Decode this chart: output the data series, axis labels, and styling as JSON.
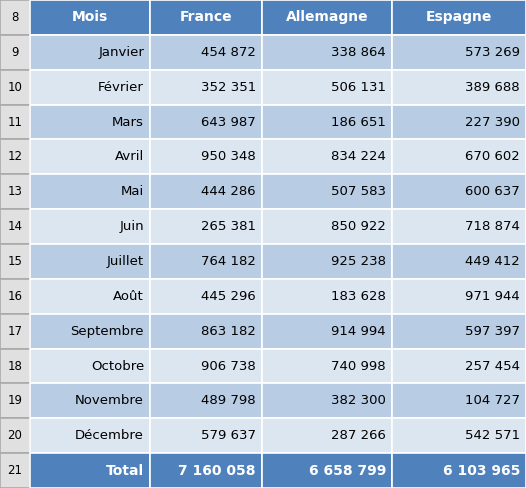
{
  "row_numbers": [
    8,
    9,
    10,
    11,
    12,
    13,
    14,
    15,
    16,
    17,
    18,
    19,
    20,
    21
  ],
  "headers": [
    "Mois",
    "France",
    "Allemagne",
    "Espagne"
  ],
  "months": [
    "Janvier",
    "Février",
    "Mars",
    "Avril",
    "Mai",
    "Juin",
    "Juillet",
    "Août",
    "Septembre",
    "Octobre",
    "Novembre",
    "Décembre"
  ],
  "france": [
    454872,
    352351,
    643987,
    950348,
    444286,
    265381,
    764182,
    445296,
    863182,
    906738,
    489798,
    579637
  ],
  "allemagne": [
    338864,
    506131,
    186651,
    834224,
    507583,
    850922,
    925238,
    183628,
    914994,
    740998,
    382300,
    287266
  ],
  "espagne": [
    573269,
    389688,
    227390,
    670602,
    600637,
    718874,
    449412,
    971944,
    597397,
    257454,
    104727,
    542571
  ],
  "total_france": 7160058,
  "total_allemagne": 6658799,
  "total_espagne": 6103965,
  "header_bg": "#4F81BD",
  "header_text": "#FFFFFF",
  "row_bg_dark": "#B8CCE4",
  "row_bg_light": "#DCE6F1",
  "total_bg": "#4F81BD",
  "total_text": "#FFFFFF",
  "border_color": "#FFFFFF",
  "rownr_bg": "#E0E0E0",
  "rownr_text": "#000000",
  "data_text_color": "#000000",
  "figsize": [
    5.26,
    4.88
  ],
  "dpi": 100
}
